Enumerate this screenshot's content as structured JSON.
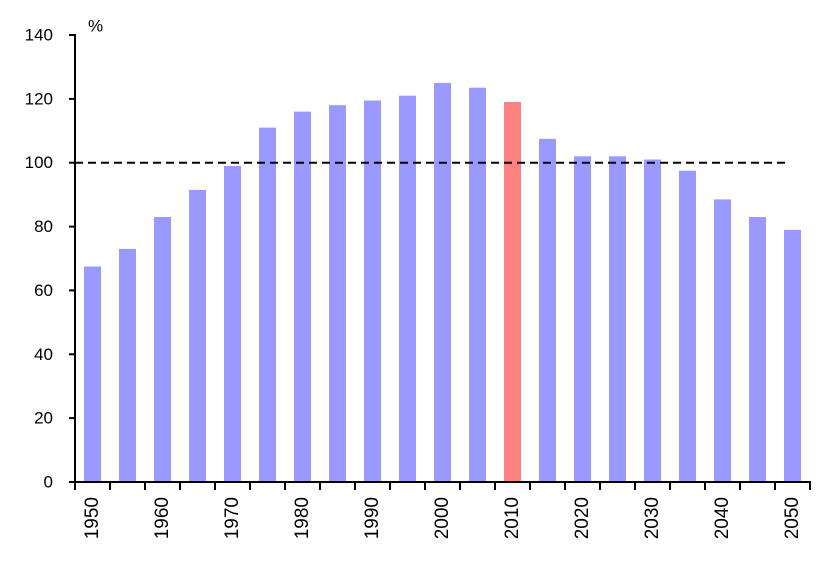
{
  "chart_data": {
    "type": "bar",
    "title": "",
    "ylabel": "%",
    "categories": [
      "1950",
      "1955",
      "1960",
      "1965",
      "1970",
      "1975",
      "1980",
      "1985",
      "1990",
      "1995",
      "2000",
      "2005",
      "2010",
      "2015",
      "2020",
      "2025",
      "2030",
      "2035",
      "2040",
      "2045",
      "2050"
    ],
    "values": [
      67.5,
      73,
      83,
      91.5,
      99,
      111,
      116,
      118,
      119.5,
      121,
      125,
      123.5,
      119,
      107.5,
      102,
      102,
      101,
      97.5,
      88.5,
      83,
      79
    ],
    "highlight_category": "2010",
    "labeled_categories": [
      "1950",
      "1960",
      "1970",
      "1980",
      "1990",
      "2000",
      "2010",
      "2020",
      "2030",
      "2040",
      "2050"
    ],
    "ylim": [
      0,
      140
    ],
    "ytick_step": 20,
    "reference_line_y": 100,
    "reference_line_style": "dashed",
    "grid": false,
    "legend_position": "none",
    "x_label_rotation_deg": -90,
    "colors": {
      "bar": "#9999ff",
      "highlight": "#ff8080",
      "axis": "#000000",
      "reference_line": "#000000",
      "text": "#000000",
      "background": "#ffffff"
    }
  }
}
